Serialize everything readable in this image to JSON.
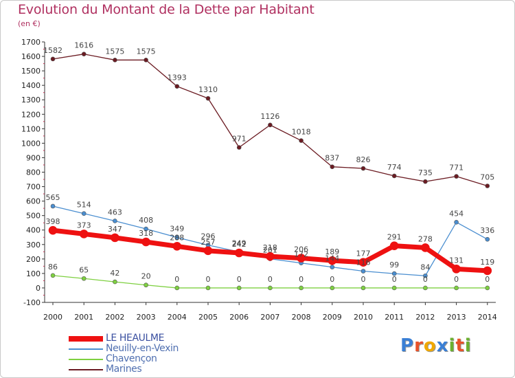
{
  "title": "Evolution du Montant de la Dette par Habitant",
  "unit": "(en €)",
  "logo": {
    "text": "Proxiti",
    "letter_colors": [
      "#3a7fd5",
      "#e8522a",
      "#f0a800",
      "#3a7fd5",
      "#6cb030",
      "#e8522a",
      "#6cb030"
    ]
  },
  "chart_data": {
    "type": "line",
    "x": [
      "2000",
      "2001",
      "2002",
      "2003",
      "2004",
      "2005",
      "2006",
      "2007",
      "2008",
      "2009",
      "2010",
      "2011",
      "2012",
      "2013",
      "2014"
    ],
    "ylim": [
      -100,
      1700
    ],
    "yticks": [
      -100,
      0,
      100,
      200,
      300,
      400,
      500,
      600,
      700,
      800,
      900,
      1000,
      1100,
      1200,
      1300,
      1400,
      1500,
      1600,
      1700
    ],
    "grid": false,
    "legend_position": "bottom-left",
    "series": [
      {
        "name": "Marines",
        "color": "#6b1b22",
        "values": [
          1582,
          1616,
          1575,
          1575,
          1393,
          1310,
          971,
          1126,
          1018,
          837,
          826,
          774,
          735,
          771,
          705
        ],
        "labels": [
          "1582",
          "1616",
          "1575",
          "1575",
          "1393",
          "1310",
          "971",
          "1126",
          "1018",
          "837",
          "826",
          "774",
          "735",
          "771",
          "705"
        ]
      },
      {
        "name": "Neuilly-en-Vexin",
        "color": "#4a8ed0",
        "values": [
          565,
          514,
          463,
          408,
          349,
          296,
          249,
          201,
          172,
          144,
          116,
          99,
          84,
          454,
          336
        ],
        "labels": [
          "565",
          "514",
          "463",
          "408",
          "349",
          "296",
          "249",
          "201",
          "172",
          "144",
          "116",
          "99",
          "84",
          "454",
          "336"
        ]
      },
      {
        "name": "Chavençon",
        "color": "#7ed040",
        "values": [
          86,
          65,
          42,
          20,
          0,
          0,
          0,
          0,
          0,
          0,
          0,
          0,
          0,
          0,
          0
        ],
        "labels": [
          "86",
          "65",
          "42",
          "20",
          "0",
          "0",
          "0",
          "0",
          "0",
          "0",
          "0",
          "0",
          "0",
          "0",
          "0"
        ]
      },
      {
        "name": "LE HEAULME",
        "color": "#ee1111",
        "values": [
          398,
          373,
          347,
          318,
          288,
          257,
          242,
          218,
          206,
          189,
          177,
          291,
          278,
          131,
          119
        ],
        "labels": [
          "398",
          "373",
          "347",
          "318",
          "288",
          "257",
          "242",
          "218",
          "206",
          "189",
          "177",
          "291",
          "278",
          "131",
          "119"
        ]
      }
    ],
    "legend_order": [
      "LE HEAULME",
      "Neuilly-en-Vexin",
      "Chavençon",
      "Marines"
    ]
  }
}
